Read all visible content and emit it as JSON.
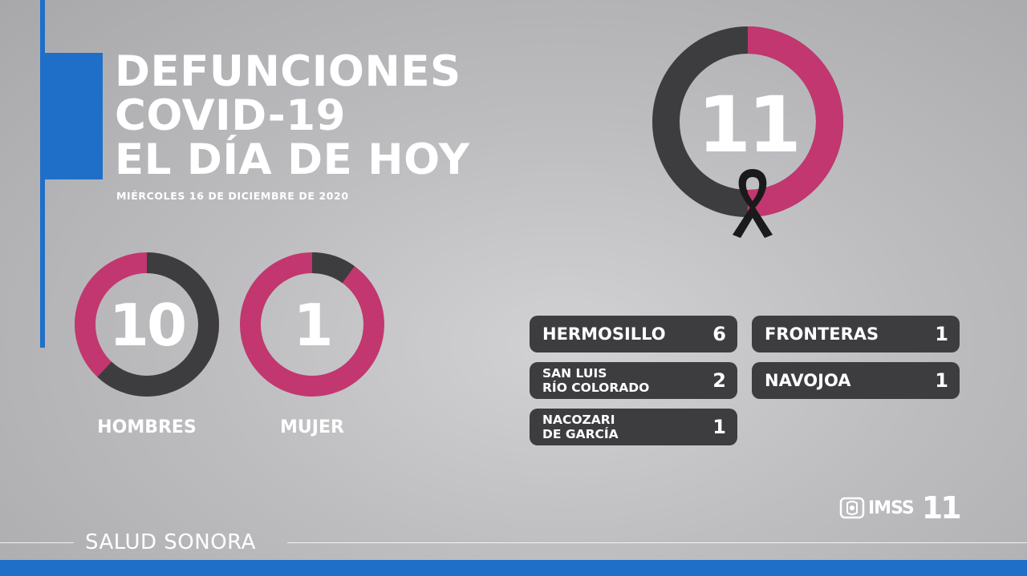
{
  "title": {
    "line1": "DEFUNCIONES",
    "line2": "COVID-19",
    "line3": "EL DÍA DE HOY"
  },
  "date": "MIÉRCOLES 16 DE DICIEMBRE DE 2020",
  "total": {
    "value": "11",
    "ring_fraction_pink": 0.5
  },
  "hombres": {
    "value": "10",
    "label": "HOMBRES",
    "ring_fraction_dark": 0.62
  },
  "mujer": {
    "value": "1",
    "label": "MUJER",
    "ring_fraction_dark": 0.1
  },
  "cities": [
    {
      "name": "HERMOSILLO",
      "count": "6"
    },
    {
      "name_line1": "SAN LUIS",
      "name_line2": "RÍO COLORADO",
      "count": "2"
    },
    {
      "name_line1": "NACOZARI",
      "name_line2": "DE GARCÍA",
      "count": "1"
    },
    {
      "name": "FRONTERAS",
      "count": "1"
    },
    {
      "name": "NAVOJOA",
      "count": "1"
    }
  ],
  "logo": {
    "text": "IMSS",
    "number": "11"
  },
  "footer": "SALUD SONORA",
  "colors": {
    "blue": "#1f6fc9",
    "pink": "#c2376f",
    "dark": "#3d3d3f"
  },
  "icons": [
    "mourning-ribbon-icon",
    "imss-logo-icon"
  ]
}
